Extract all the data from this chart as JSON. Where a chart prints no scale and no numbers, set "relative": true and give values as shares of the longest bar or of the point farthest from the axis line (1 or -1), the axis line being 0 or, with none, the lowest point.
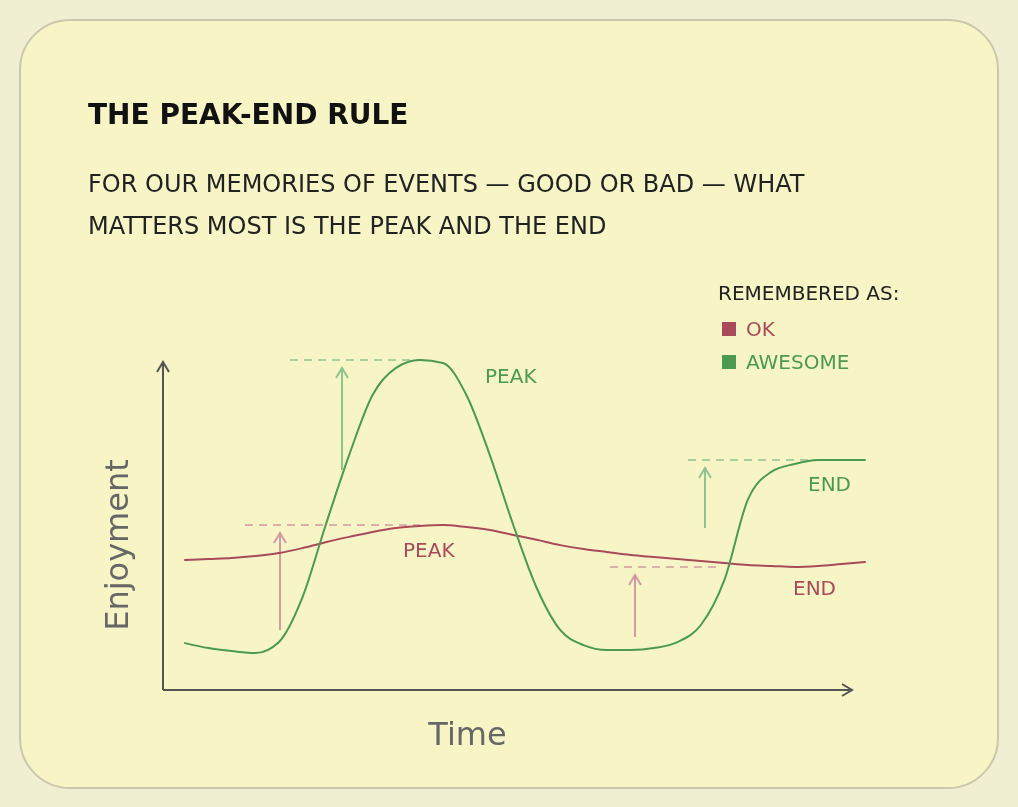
{
  "chart_data": {
    "type": "line",
    "title": "THE PEAK-END RULE",
    "subtitle": "FOR OUR MEMORIES OF EVENTS — GOOD OR BAD — WHAT MATTERS MOST IS THE PEAK AND THE END",
    "xlabel": "Time",
    "ylabel": "Enjoyment",
    "legend_title": "REMEMBERED AS:",
    "legend": "top right",
    "relative": true,
    "marker": "none",
    "categories": [
      null,
      null,
      null,
      null,
      null,
      null,
      null,
      null,
      null,
      null,
      null,
      null,
      null,
      null,
      null,
      null,
      null,
      null,
      null,
      null,
      null,
      null,
      null,
      null,
      null,
      null,
      null,
      null,
      null,
      null
    ],
    "series": [
      {
        "name": "OK",
        "color": "#a84a5a",
        "values": [
          0.394,
          0.397,
          0.4,
          0.406,
          0.415,
          0.43,
          0.448,
          0.464,
          0.479,
          0.491,
          0.497,
          0.5,
          0.494,
          0.485,
          0.47,
          0.455,
          0.439,
          0.427,
          0.418,
          0.409,
          0.403,
          0.397,
          0.391,
          0.385,
          0.379,
          0.376,
          0.373,
          0.376,
          0.382,
          0.388
        ]
      },
      {
        "name": "AWESOME",
        "color": "#4c9a50",
        "values": [
          0.142,
          0.127,
          0.118,
          0.112,
          0.145,
          0.279,
          0.5,
          0.712,
          0.894,
          0.976,
          1,
          0.991,
          0.894,
          0.712,
          0.5,
          0.309,
          0.182,
          0.136,
          0.121,
          0.121,
          0.127,
          0.145,
          0.197,
          0.333,
          0.576,
          0.661,
          0.685,
          0.697,
          0.697,
          0.697
        ]
      }
    ],
    "annotations": [
      "PEAK",
      "PEAK",
      "END",
      "END"
    ],
    "ref_lines": [
      {
        "axis": "y",
        "value": 1,
        "color": "#8fc48f",
        "line_style": "dashed"
      },
      {
        "axis": "y",
        "value": 0.5,
        "color": "#d49aa4",
        "line_style": "dashed"
      },
      {
        "axis": "y",
        "value": 0.697,
        "color": "#8fc48f",
        "line_style": "dashed"
      },
      {
        "axis": "y",
        "value": 0.373,
        "color": "#d49aa4",
        "line_style": "dashed"
      }
    ]
  }
}
